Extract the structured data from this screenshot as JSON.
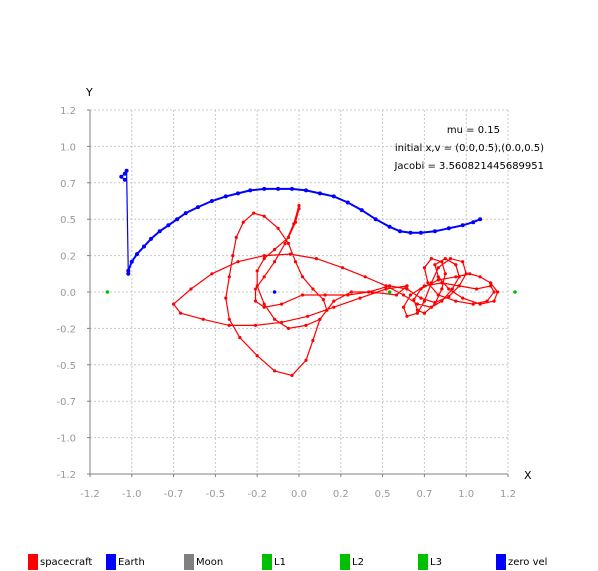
{
  "chart_data": {
    "type": "scatter",
    "xlabel": "X",
    "ylabel": "Y",
    "xlim": [
      -1.2,
      1.2
    ],
    "ylim": [
      -1.2,
      1.2
    ],
    "ticks": {
      "x": [
        "-1.2",
        "-1.0",
        "-0.7",
        "-0.5",
        "-0.2",
        "0.0",
        "0.2",
        "0.5",
        "0.7",
        "1.0",
        "1.2"
      ],
      "y": [
        "1.2",
        "1.0",
        "0.7",
        "0.5",
        "0.2",
        "0.0",
        "-0.2",
        "-0.5",
        "-0.7",
        "-1.0",
        "-1.2"
      ],
      "x_values": [
        -1.2,
        -0.96,
        -0.72,
        -0.48,
        -0.24,
        0,
        0.24,
        0.48,
        0.72,
        0.96,
        1.2
      ],
      "y_values": [
        1.2,
        0.96,
        0.72,
        0.48,
        0.24,
        0,
        -0.24,
        -0.48,
        -0.72,
        -0.96,
        -1.2
      ]
    },
    "grid": true,
    "legend_position": "bottom",
    "annotations": [
      "mu = 0.15",
      "initial x,v = (0.0,0.5),(0.0,0.5)",
      "Jacobi = 3.560821445689951"
    ],
    "series": [
      {
        "name": "spacecraft",
        "color": "#ff0000",
        "points": [
          [
            0.0,
            0.57
          ],
          [
            -0.03,
            0.45
          ],
          [
            -0.08,
            0.32
          ],
          [
            -0.14,
            0.2
          ],
          [
            -0.2,
            0.1
          ],
          [
            -0.25,
            0.02
          ],
          [
            -0.25,
            -0.06
          ],
          [
            -0.2,
            -0.1
          ],
          [
            -0.1,
            -0.08
          ],
          [
            0.02,
            -0.02
          ],
          [
            0.15,
            -0.02
          ],
          [
            0.28,
            -0.02
          ],
          [
            0.4,
            0.0
          ],
          [
            0.52,
            0.04
          ],
          [
            0.62,
            0.02
          ],
          [
            0.7,
            -0.04
          ],
          [
            0.78,
            -0.07
          ],
          [
            0.86,
            -0.03
          ],
          [
            0.92,
            0.04
          ],
          [
            0.96,
            0.12
          ],
          [
            0.94,
            0.2
          ],
          [
            0.87,
            0.22
          ],
          [
            0.8,
            0.16
          ],
          [
            0.76,
            0.06
          ],
          [
            0.72,
            -0.06
          ],
          [
            0.68,
            -0.14
          ],
          [
            0.62,
            -0.16
          ],
          [
            0.6,
            -0.1
          ],
          [
            0.64,
            -0.02
          ],
          [
            0.72,
            0.04
          ],
          [
            0.82,
            0.06
          ],
          [
            0.92,
            0.04
          ],
          [
            1.02,
            0.02
          ],
          [
            1.1,
            0.04
          ],
          [
            1.12,
            0.0
          ],
          [
            1.08,
            -0.06
          ],
          [
            1.0,
            -0.08
          ],
          [
            0.9,
            -0.06
          ],
          [
            0.8,
            -0.02
          ],
          [
            0.74,
            0.06
          ],
          [
            0.72,
            0.16
          ],
          [
            0.76,
            0.22
          ],
          [
            0.82,
            0.2
          ],
          [
            0.84,
            0.12
          ],
          [
            0.82,
            0.02
          ],
          [
            0.78,
            -0.08
          ],
          [
            0.72,
            -0.14
          ],
          [
            0.68,
            -0.12
          ],
          [
            0.66,
            -0.05
          ],
          [
            0.7,
            0.02
          ],
          [
            0.8,
            0.08
          ],
          [
            0.9,
            0.1
          ],
          [
            0.98,
            0.12
          ],
          [
            1.04,
            0.1
          ],
          [
            1.1,
            0.06
          ],
          [
            1.14,
            0.0
          ],
          [
            1.12,
            -0.06
          ],
          [
            1.04,
            -0.08
          ],
          [
            0.94,
            -0.04
          ],
          [
            0.86,
            0.02
          ],
          [
            0.8,
            0.1
          ],
          [
            0.78,
            0.18
          ],
          [
            0.84,
            0.22
          ],
          [
            0.9,
            0.18
          ],
          [
            0.92,
            0.1
          ],
          [
            0.88,
            0.02
          ],
          [
            0.82,
            -0.06
          ],
          [
            0.76,
            -0.1
          ],
          [
            0.68,
            -0.08
          ],
          [
            0.6,
            -0.02
          ],
          [
            0.5,
            0.04
          ],
          [
            0.38,
            0.1
          ],
          [
            0.25,
            0.16
          ],
          [
            0.1,
            0.22
          ],
          [
            -0.05,
            0.25
          ],
          [
            -0.2,
            0.24
          ],
          [
            -0.35,
            0.2
          ],
          [
            -0.5,
            0.12
          ],
          [
            -0.62,
            0.02
          ],
          [
            -0.72,
            -0.08
          ],
          [
            -0.68,
            -0.14
          ],
          [
            -0.55,
            -0.18
          ],
          [
            -0.4,
            -0.22
          ],
          [
            -0.25,
            -0.22
          ],
          [
            -0.1,
            -0.2
          ],
          [
            0.05,
            -0.16
          ],
          [
            0.2,
            -0.1
          ],
          [
            0.35,
            -0.04
          ],
          [
            0.5,
            0.02
          ],
          [
            0.62,
            0.04
          ],
          [
            0.56,
            -0.02
          ],
          [
            0.42,
            0.0
          ],
          [
            0.3,
            0.0
          ],
          [
            0.2,
            -0.06
          ],
          [
            0.12,
            -0.18
          ],
          [
            0.08,
            -0.32
          ],
          [
            0.04,
            -0.45
          ],
          [
            -0.04,
            -0.55
          ],
          [
            -0.14,
            -0.52
          ],
          [
            -0.24,
            -0.42
          ],
          [
            -0.34,
            -0.3
          ],
          [
            -0.4,
            -0.18
          ],
          [
            -0.42,
            -0.04
          ],
          [
            -0.4,
            0.1
          ],
          [
            -0.38,
            0.24
          ],
          [
            -0.36,
            0.36
          ],
          [
            -0.32,
            0.46
          ],
          [
            -0.26,
            0.52
          ],
          [
            -0.2,
            0.5
          ],
          [
            -0.12,
            0.42
          ],
          [
            -0.06,
            0.32
          ],
          [
            -0.02,
            0.2
          ],
          [
            0.02,
            0.1
          ],
          [
            0.08,
            0.02
          ],
          [
            0.14,
            -0.05
          ],
          [
            0.16,
            -0.12
          ],
          [
            0.12,
            -0.18
          ],
          [
            0.04,
            -0.22
          ],
          [
            -0.06,
            -0.24
          ],
          [
            -0.14,
            -0.18
          ],
          [
            -0.2,
            -0.08
          ],
          [
            -0.24,
            0.04
          ],
          [
            -0.24,
            0.14
          ],
          [
            -0.2,
            0.22
          ],
          [
            -0.14,
            0.28
          ],
          [
            -0.06,
            0.36
          ],
          [
            -0.02,
            0.46
          ],
          [
            0.0,
            0.55
          ]
        ]
      },
      {
        "name": "Earth",
        "color": "#0000ff",
        "points": [
          [
            -0.14,
            0.0
          ]
        ]
      },
      {
        "name": "Moon",
        "color": "#808080",
        "points": []
      },
      {
        "name": "L1",
        "color": "#00c000",
        "points": [
          [
            0.52,
            0.0
          ]
        ]
      },
      {
        "name": "L2",
        "color": "#00c000",
        "points": [
          [
            1.24,
            0.0
          ]
        ]
      },
      {
        "name": "L3",
        "color": "#00c000",
        "points": [
          [
            -1.1,
            0.0
          ]
        ]
      },
      {
        "name": "zero vel",
        "color": "#0000ff",
        "points": [
          [
            -0.98,
            0.14
          ],
          [
            -0.96,
            0.2
          ],
          [
            -0.93,
            0.25
          ],
          [
            -0.89,
            0.3
          ],
          [
            -0.85,
            0.35
          ],
          [
            -0.8,
            0.4
          ],
          [
            -0.75,
            0.44
          ],
          [
            -0.7,
            0.48
          ],
          [
            -0.65,
            0.52
          ],
          [
            -0.58,
            0.56
          ],
          [
            -0.5,
            0.6
          ],
          [
            -0.42,
            0.63
          ],
          [
            -0.35,
            0.65
          ],
          [
            -0.28,
            0.67
          ],
          [
            -0.2,
            0.68
          ],
          [
            -0.12,
            0.68
          ],
          [
            -0.04,
            0.68
          ],
          [
            0.04,
            0.67
          ],
          [
            0.12,
            0.65
          ],
          [
            0.2,
            0.63
          ],
          [
            0.28,
            0.59
          ],
          [
            0.36,
            0.54
          ],
          [
            0.44,
            0.48
          ],
          [
            0.52,
            0.43
          ],
          [
            0.58,
            0.4
          ],
          [
            0.64,
            0.39
          ],
          [
            0.7,
            0.39
          ],
          [
            0.78,
            0.4
          ],
          [
            0.86,
            0.42
          ],
          [
            0.94,
            0.44
          ],
          [
            1.0,
            0.46
          ],
          [
            1.04,
            0.48
          ],
          [
            -1.0,
            0.74
          ],
          [
            -1.02,
            0.76
          ],
          [
            -1.0,
            0.78
          ],
          [
            -0.99,
            0.8
          ],
          [
            -0.98,
            0.12
          ]
        ]
      }
    ]
  }
}
